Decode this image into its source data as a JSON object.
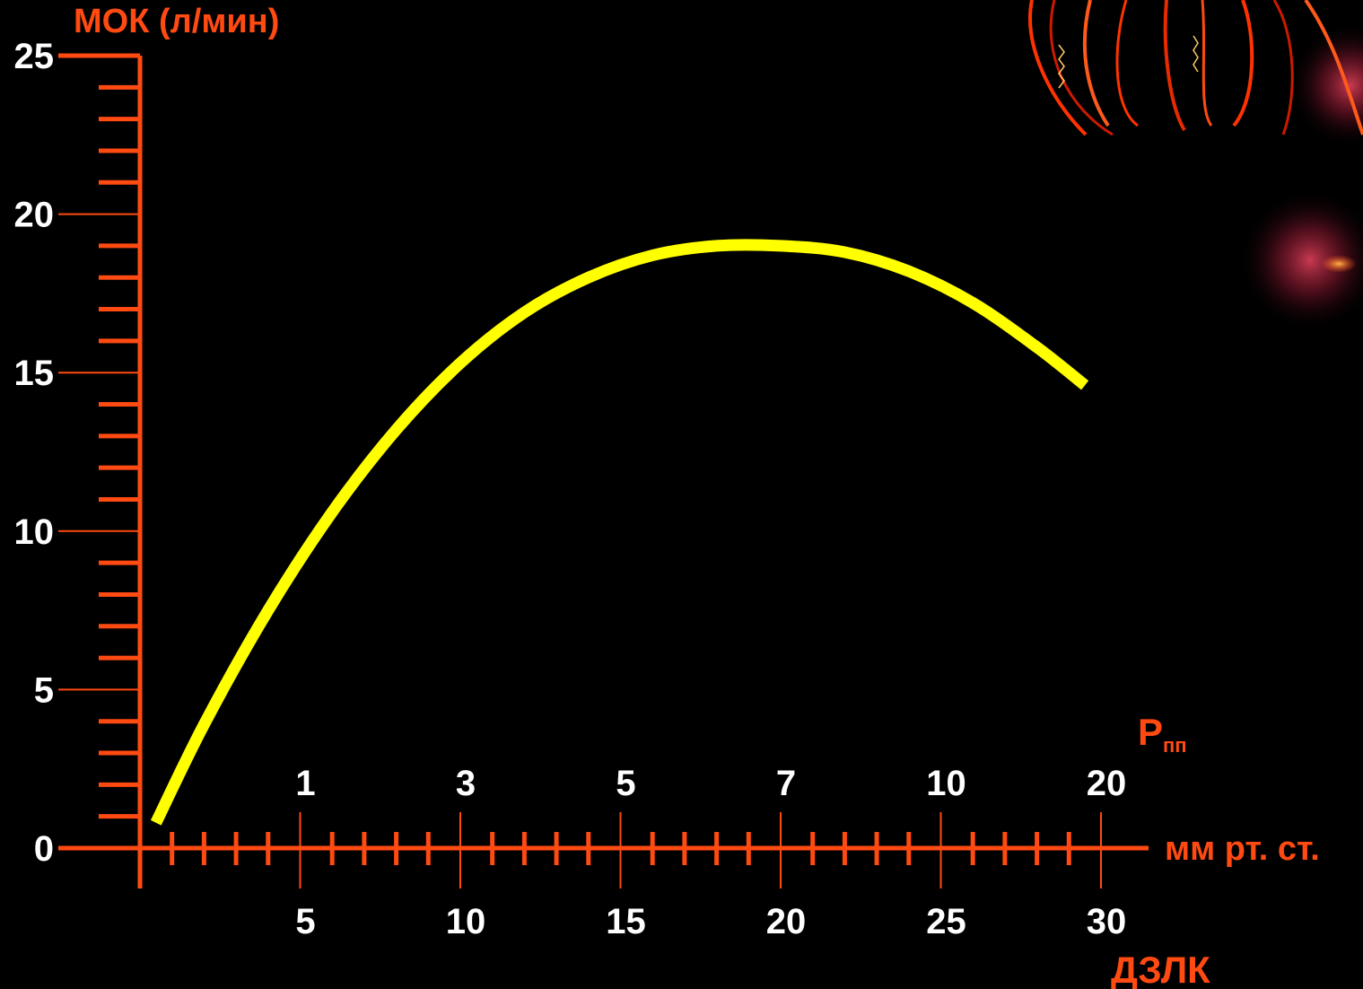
{
  "colors": {
    "background": "#000000",
    "axis": "#ff4a12",
    "curve": "#ffff00",
    "tick_labels": "#ffffff"
  },
  "chart_data": {
    "type": "line",
    "ylabel": "МОК (л/мин)",
    "ylim": [
      0,
      25
    ],
    "y_ticks": [
      "0",
      "5",
      "10",
      "15",
      "20",
      "25"
    ],
    "x_units_label": "мм рт. ст.",
    "x_bottom": {
      "label": "ДЗЛК",
      "range": [
        0,
        30
      ],
      "ticks": [
        {
          "value": 5,
          "label": "5"
        },
        {
          "value": 10,
          "label": "10"
        },
        {
          "value": 15,
          "label": "15"
        },
        {
          "value": 20,
          "label": "20"
        },
        {
          "value": 25,
          "label": "25"
        },
        {
          "value": 30,
          "label": "30"
        }
      ]
    },
    "x_top": {
      "label_main": "P",
      "label_sub": "пп",
      "ticks": [
        {
          "at_dzlk": 5,
          "label": "1"
        },
        {
          "at_dzlk": 10,
          "label": "3"
        },
        {
          "at_dzlk": 15,
          "label": "5"
        },
        {
          "at_dzlk": 20,
          "label": "7"
        },
        {
          "at_dzlk": 25,
          "label": "10"
        },
        {
          "at_dzlk": 30,
          "label": "20"
        }
      ]
    },
    "series": [
      {
        "x": [
          0.5,
          2,
          4,
          6,
          8,
          10,
          12,
          14,
          16,
          18,
          20,
          22,
          24,
          26,
          28,
          29.5
        ],
        "y": [
          0.8,
          3.9,
          7.5,
          10.6,
          13.2,
          15.3,
          16.9,
          18.0,
          18.7,
          19.0,
          19.0,
          18.8,
          18.2,
          17.2,
          15.8,
          14.6
        ]
      }
    ],
    "grid": false,
    "legend": "none"
  }
}
